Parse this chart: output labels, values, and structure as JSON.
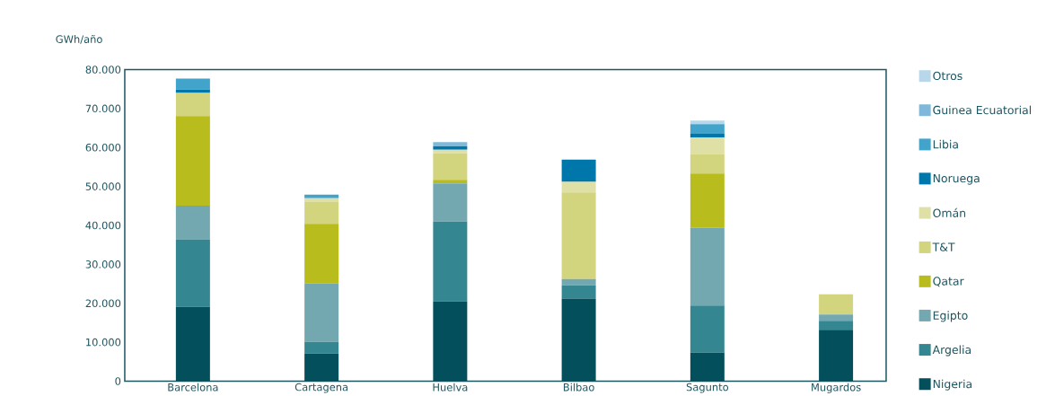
{
  "chart_data": {
    "type": "bar",
    "stacked": true,
    "ylabel": "GWh/año",
    "categories": [
      "Barcelona",
      "Cartagena",
      "Huelva",
      "Bilbao",
      "Sagunto",
      "Mugardos"
    ],
    "ylim": [
      0,
      80000
    ],
    "yticks": [
      {
        "value": 0,
        "label": "0"
      },
      {
        "value": 10000,
        "label": "10.000"
      },
      {
        "value": 20000,
        "label": "20.000"
      },
      {
        "value": 30000,
        "label": "30.000"
      },
      {
        "value": 40000,
        "label": "40.000"
      },
      {
        "value": 50000,
        "label": "50.000"
      },
      {
        "value": 60000,
        "label": "60.000"
      },
      {
        "value": 70000,
        "label": "70.000"
      },
      {
        "value": 80000,
        "label": "80.000"
      }
    ],
    "grid": false,
    "legend": "right",
    "series": [
      {
        "name": "Nigeria",
        "color": "#03505c",
        "values": [
          19100,
          7100,
          20500,
          21200,
          7300,
          13200
        ]
      },
      {
        "name": "Argelia",
        "color": "#348790",
        "values": [
          17300,
          3000,
          20500,
          3400,
          12100,
          2300
        ]
      },
      {
        "name": "Egipto",
        "color": "#73a8b1",
        "values": [
          8700,
          15000,
          9800,
          1600,
          20000,
          1600
        ]
      },
      {
        "name": "Qatar",
        "color": "#b8bd1d",
        "values": [
          23000,
          15300,
          900,
          null,
          13900,
          null
        ]
      },
      {
        "name": "T&T",
        "color": "#d2d47e",
        "values": [
          5900,
          5700,
          6800,
          22300,
          5000,
          5200
        ]
      },
      {
        "name": "Omán",
        "color": "#dfe0a6",
        "values": [
          null,
          900,
          900,
          2700,
          4300,
          null
        ]
      },
      {
        "name": "Noruega",
        "color": "#0077aa",
        "values": [
          900,
          null,
          900,
          5700,
          900,
          null
        ]
      },
      {
        "name": "Libia",
        "color": "#42a3cb",
        "values": [
          2800,
          900,
          null,
          null,
          2500,
          null
        ]
      },
      {
        "name": "Guinea Ecuatorial",
        "color": "#7fb8d8",
        "values": [
          null,
          null,
          1100,
          null,
          null,
          null
        ]
      },
      {
        "name": "Otros",
        "color": "#b9d7ea",
        "values": [
          null,
          null,
          null,
          null,
          900,
          null
        ]
      }
    ]
  }
}
